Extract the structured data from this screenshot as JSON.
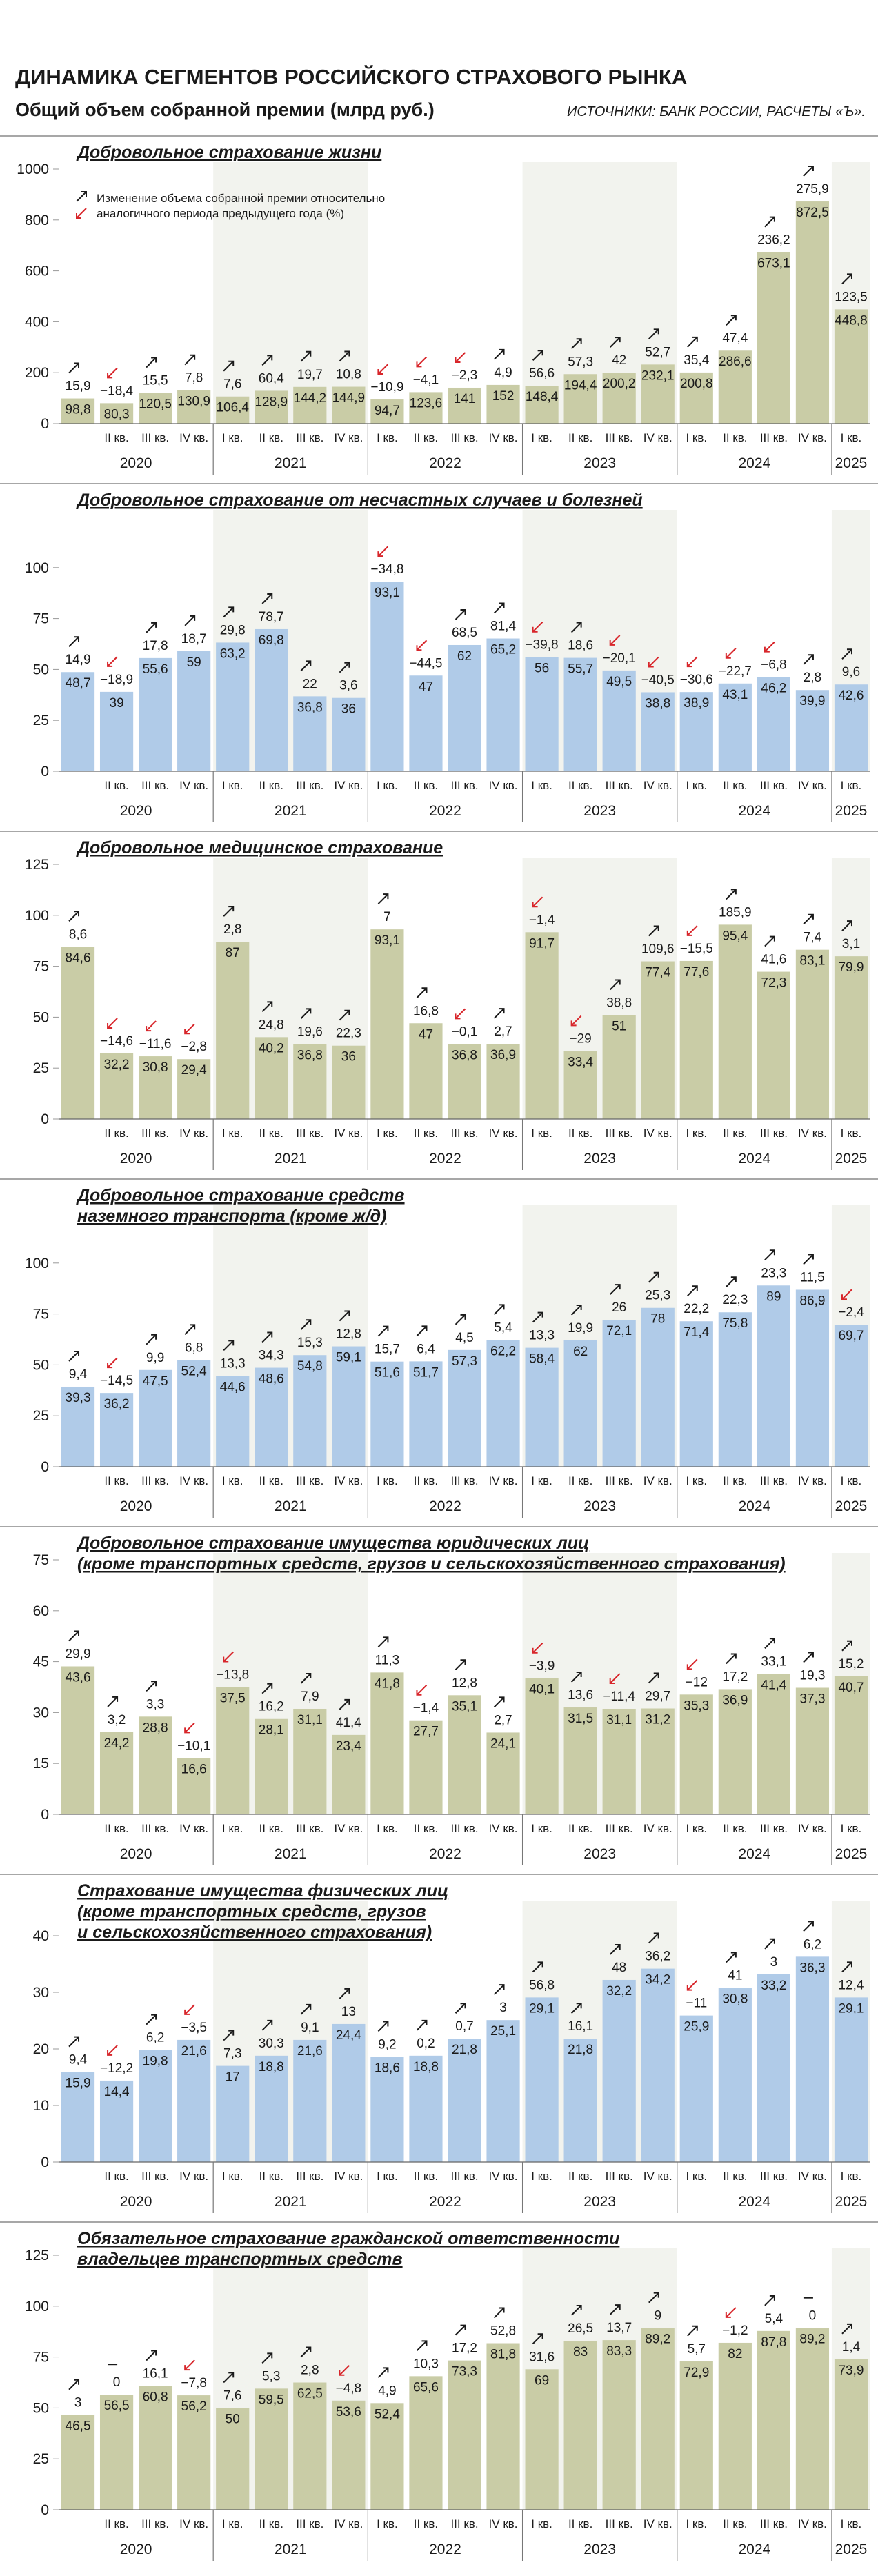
{
  "header": {
    "title": "ДИНАМИКА СЕГМЕНТОВ РОССИЙСКОГО СТРАХОВОГО РЫНКА",
    "subtitle": "Общий объем собранной премии (млрд руб.)",
    "source": "ИСТОЧНИКИ: БАНК РОССИИ, РАСЧЕТЫ «Ъ»."
  },
  "chart_data": [
    {
      "type": "bar",
      "title": [
        "Добровольное страхование жизни"
      ],
      "note": [
        "Изменение объема собранной премии относительно",
        "аналогичного периода предыдущего года (%)"
      ],
      "color": "#c9cca6",
      "categories": [
        null,
        "II кв.",
        "III кв.",
        "IV кв.",
        "I кв.",
        "II кв.",
        "III кв.",
        "IV кв.",
        "I кв.",
        "II кв.",
        "III кв.",
        "IV кв.",
        "I кв.",
        "II кв.",
        "III кв.",
        "IV кв.",
        "I кв.",
        "II кв.",
        "III кв.",
        "IV кв.",
        "I кв."
      ],
      "years": [
        "2020",
        "2021",
        "2022",
        "2023",
        "2024",
        "2025"
      ],
      "values": [
        98.8,
        80.3,
        120.5,
        130.9,
        106.4,
        128.9,
        144.2,
        144.9,
        94.7,
        123.6,
        141,
        152,
        148.4,
        194.4,
        200.2,
        232.1,
        200.8,
        286.6,
        673.1,
        872.5,
        448.8
      ],
      "value_labels": [
        "98,8",
        "80,3",
        "120,5",
        "130,9",
        "106,4",
        "128,9",
        "144,2",
        "144,9",
        "94,7",
        "123,6",
        "141",
        "152",
        "148,4",
        "194,4",
        "200,2",
        "232,1",
        "200,8",
        "286,6",
        "673,1",
        "872,5",
        "448,8"
      ],
      "changes": [
        15.9,
        -18.4,
        15.5,
        7.8,
        7.6,
        60.4,
        19.7,
        10.8,
        -10.9,
        -4.1,
        -2.3,
        4.9,
        56.6,
        57.3,
        42,
        52.7,
        35.4,
        47.4,
        236.2,
        275.9,
        123.5
      ],
      "change_labels": [
        "15,9",
        "−18,4",
        "15,5",
        "7,8",
        "7,6",
        "60,4",
        "19,7",
        "10,8",
        "−10,9",
        "−4,1",
        "−2,3",
        "4,9",
        "56,6",
        "57,3",
        "42",
        "52,7",
        "35,4",
        "47,4",
        "236,2",
        "275,9",
        "123,5"
      ],
      "ylim": [
        0,
        1000
      ],
      "yticks": [
        0,
        200,
        400,
        600,
        800,
        1000
      ]
    },
    {
      "type": "bar",
      "title": [
        "Добровольное страхование от несчастных случаев и болезней"
      ],
      "color": "#b0cbe8",
      "categories": [
        null,
        "II кв.",
        "III кв.",
        "IV кв.",
        "I кв.",
        "II кв.",
        "III кв.",
        "IV кв.",
        "I кв.",
        "II кв.",
        "III кв.",
        "IV кв.",
        "I кв.",
        "II кв.",
        "III кв.",
        "IV кв.",
        "I кв.",
        "II кв.",
        "III кв.",
        "IV кв.",
        "I кв."
      ],
      "years": [
        "2020",
        "2021",
        "2022",
        "2023",
        "2024",
        "2025"
      ],
      "values": [
        48.7,
        39,
        55.6,
        59,
        63.2,
        69.8,
        36.8,
        36,
        93.1,
        47,
        62,
        65.2,
        56,
        55.7,
        49.5,
        38.8,
        38.9,
        43.1,
        46.2,
        39.9,
        42.6
      ],
      "value_labels": [
        "48,7",
        "39",
        "55,6",
        "59",
        "63,2",
        "69,8",
        "36,8",
        "36",
        "93,1",
        "47",
        "62",
        "65,2",
        "56",
        "55,7",
        "49,5",
        "38,8",
        "38,9",
        "43,1",
        "46,2",
        "39,9",
        "42,6"
      ],
      "changes": [
        14.9,
        -18.9,
        17.8,
        18.7,
        29.8,
        78.7,
        22,
        3.6,
        -34.8,
        -44.5,
        68.5,
        81.4,
        -39.8,
        18.6,
        -20.1,
        -40.5,
        -30.6,
        -22.7,
        -6.8,
        2.8,
        9.6
      ],
      "change_labels": [
        "14,9",
        "−18,9",
        "17,8",
        "18,7",
        "29,8",
        "78,7",
        "22",
        "3,6",
        "−34,8",
        "−44,5",
        "68,5",
        "81,4",
        "−39,8",
        "18,6",
        "−20,1",
        "−40,5",
        "−30,6",
        "−22,7",
        "−6,8",
        "2,8",
        "9,6"
      ],
      "ylim": [
        0,
        125
      ],
      "yticks": [
        0,
        25,
        50,
        75,
        100
      ]
    },
    {
      "type": "bar",
      "title": [
        "Добровольное медицинское страхование"
      ],
      "color": "#c9cca6",
      "categories": [
        null,
        "II кв.",
        "III кв.",
        "IV кв.",
        "I кв.",
        "II кв.",
        "III кв.",
        "IV кв.",
        "I кв.",
        "II кв.",
        "III кв.",
        "IV кв.",
        "I кв.",
        "II кв.",
        "III кв.",
        "IV кв.",
        "I кв.",
        "II кв.",
        "III кв.",
        "IV кв.",
        "I кв."
      ],
      "years": [
        "2020",
        "2021",
        "2022",
        "2023",
        "2024",
        "2025"
      ],
      "values": [
        84.6,
        32.2,
        30.8,
        29.4,
        87,
        40.2,
        36.8,
        36,
        93.1,
        47,
        36.8,
        36.9,
        91.7,
        33.4,
        51,
        77.4,
        77.6,
        95.4,
        72.3,
        83.1,
        79.9
      ],
      "value_labels": [
        "84,6",
        "32,2",
        "30,8",
        "29,4",
        "87",
        "40,2",
        "36,8",
        "36",
        "93,1",
        "47",
        "36,8",
        "36,9",
        "91,7",
        "33,4",
        "51",
        "77,4",
        "77,6",
        "95,4",
        "72,3",
        "83,1",
        "79,9"
      ],
      "changes": [
        8.6,
        -14.6,
        -11.6,
        -2.8,
        2.8,
        24.8,
        19.6,
        22.3,
        7,
        16.8,
        -0.1,
        2.7,
        -1.4,
        -29,
        38.8,
        109.6,
        -15.5,
        185.9,
        41.6,
        7.4,
        3.1
      ],
      "change_labels": [
        "8,6",
        "−14,6",
        "−11,6",
        "−2,8",
        "2,8",
        "24,8",
        "19,6",
        "22,3",
        "7",
        "16,8",
        "−0,1",
        "2,7",
        "−1,4",
        "−29",
        "38,8",
        "109,6",
        "−15,5",
        "185,9",
        "41,6",
        "7,4",
        "3,1"
      ],
      "ylim": [
        0,
        125
      ],
      "yticks": [
        0,
        25,
        50,
        75,
        100,
        125
      ]
    },
    {
      "type": "bar",
      "title": [
        "Добровольное страхование средств",
        "наземного транспорта (кроме ж/д)"
      ],
      "color": "#b0cbe8",
      "categories": [
        null,
        "II кв.",
        "III кв.",
        "IV кв.",
        "I кв.",
        "II кв.",
        "III кв.",
        "IV кв.",
        "I кв.",
        "II кв.",
        "III кв.",
        "IV кв.",
        "I кв.",
        "II кв.",
        "III кв.",
        "IV кв.",
        "I кв.",
        "II кв.",
        "III кв.",
        "IV кв.",
        "I кв."
      ],
      "years": [
        "2020",
        "2021",
        "2022",
        "2023",
        "2024",
        "2025"
      ],
      "values": [
        39.3,
        36.2,
        47.5,
        52.4,
        44.6,
        48.6,
        54.8,
        59.1,
        51.6,
        51.7,
        57.3,
        62.2,
        58.4,
        62,
        72.1,
        78,
        71.4,
        75.8,
        89,
        86.9,
        69.7
      ],
      "value_labels": [
        "39,3",
        "36,2",
        "47,5",
        "52,4",
        "44,6",
        "48,6",
        "54,8",
        "59,1",
        "51,6",
        "51,7",
        "57,3",
        "62,2",
        "58,4",
        "62",
        "72,1",
        "78",
        "71,4",
        "75,8",
        "89",
        "86,9",
        "69,7"
      ],
      "changes": [
        9.4,
        -14.5,
        9.9,
        6.8,
        13.3,
        34.3,
        15.3,
        12.8,
        15.7,
        6.4,
        4.5,
        5.4,
        13.3,
        19.9,
        26,
        25.3,
        22.2,
        22.3,
        23.3,
        11.5,
        -2.4
      ],
      "change_labels": [
        "9,4",
        "−14,5",
        "9,9",
        "6,8",
        "13,3",
        "34,3",
        "15,3",
        "12,8",
        "15,7",
        "6,4",
        "4,5",
        "5,4",
        "13,3",
        "19,9",
        "26",
        "25,3",
        "22,2",
        "22,3",
        "23,3",
        "11,5",
        "−2,4"
      ],
      "ylim": [
        0,
        125
      ],
      "yticks": [
        0,
        25,
        50,
        75,
        100
      ]
    },
    {
      "type": "bar",
      "title": [
        "Добровольное страхование имущества юридических лиц",
        "(кроме транспортных средств, грузов и сельскохозяйственного страхования)"
      ],
      "color": "#c9cca6",
      "categories": [
        null,
        "II кв.",
        "III кв.",
        "IV кв.",
        "I кв.",
        "II кв.",
        "III кв.",
        "IV кв.",
        "I кв.",
        "II кв.",
        "III кв.",
        "IV кв.",
        "I кв.",
        "II кв.",
        "III кв.",
        "IV кв.",
        "I кв.",
        "II кв.",
        "III кв.",
        "IV кв.",
        "I кв."
      ],
      "years": [
        "2020",
        "2021",
        "2022",
        "2023",
        "2024",
        "2025"
      ],
      "values": [
        43.6,
        24.2,
        28.8,
        16.6,
        37.5,
        28.1,
        31.1,
        23.4,
        41.8,
        27.7,
        35.1,
        24.1,
        40.1,
        31.5,
        31.1,
        31.2,
        35.3,
        36.9,
        41.4,
        37.3,
        40.7
      ],
      "value_labels": [
        "43,6",
        "24,2",
        "28,8",
        "16,6",
        "37,5",
        "28,1",
        "31,1",
        "23,4",
        "41,8",
        "27,7",
        "35,1",
        "24,1",
        "40,1",
        "31,5",
        "31,1",
        "31,2",
        "35,3",
        "36,9",
        "41,4",
        "37,3",
        "40,7"
      ],
      "changes": [
        29.9,
        3.2,
        3.3,
        -10.1,
        -13.8,
        16.2,
        7.9,
        41.4,
        11.3,
        -1.4,
        12.8,
        2.7,
        -3.9,
        13.6,
        -11.4,
        29.7,
        -12,
        17.2,
        33.1,
        19.3,
        15.2
      ],
      "change_labels": [
        "29,9",
        "3,2",
        "3,3",
        "−10,1",
        "−13,8",
        "16,2",
        "7,9",
        "41,4",
        "11,3",
        "−1,4",
        "12,8",
        "2,7",
        "−3,9",
        "13,6",
        "−11,4",
        "29,7",
        "−12",
        "17,2",
        "33,1",
        "19,3",
        "15,2"
      ],
      "ylim": [
        0,
        75
      ],
      "yticks": [
        0,
        15,
        30,
        45,
        60,
        75
      ]
    },
    {
      "type": "bar",
      "title": [
        "Страхование имущества физических лиц",
        "(кроме транспортных средств, грузов",
        "и сельскохозяйственного страхования)"
      ],
      "color": "#b0cbe8",
      "categories": [
        null,
        "II кв.",
        "III кв.",
        "IV кв.",
        "I кв.",
        "II кв.",
        "III кв.",
        "IV кв.",
        "I кв.",
        "II кв.",
        "III кв.",
        "IV кв.",
        "I кв.",
        "II кв.",
        "III кв.",
        "IV кв.",
        "I кв.",
        "II кв.",
        "III кв.",
        "IV кв.",
        "I кв."
      ],
      "years": [
        "2020",
        "2021",
        "2022",
        "2023",
        "2024",
        "2025"
      ],
      "values": [
        15.9,
        14.4,
        19.8,
        21.6,
        17,
        18.8,
        21.6,
        24.4,
        18.6,
        18.8,
        21.8,
        25.1,
        29.1,
        21.8,
        32.2,
        34.2,
        25.9,
        30.8,
        33.2,
        36.3,
        29.1
      ],
      "value_labels": [
        "15,9",
        "14,4",
        "19,8",
        "21,6",
        "17",
        "18,8",
        "21,6",
        "24,4",
        "18,6",
        "18,8",
        "21,8",
        "25,1",
        "29,1",
        "21,8",
        "32,2",
        "34,2",
        "25,9",
        "30,8",
        "33,2",
        "36,3",
        "29,1"
      ],
      "changes": [
        9.4,
        -12.2,
        6.2,
        -3.5,
        7.3,
        30.3,
        9.1,
        13,
        9.2,
        0.2,
        0.7,
        3,
        56.8,
        16.1,
        48,
        36.2,
        -11,
        41,
        3,
        6.2,
        12.4
      ],
      "change_labels": [
        "9,4",
        "−12,2",
        "6,2",
        "−3,5",
        "7,3",
        "30,3",
        "9,1",
        "13",
        "9,2",
        "0,2",
        "0,7",
        "3",
        "56,8",
        "16,1",
        "48",
        "36,2",
        "−11",
        "41",
        "3",
        "6,2",
        "12,4"
      ],
      "ylim": [
        0,
        45
      ],
      "yticks": [
        0,
        10,
        20,
        30,
        40
      ]
    },
    {
      "type": "bar",
      "title": [
        "Обязательное страхование гражданской ответственности",
        "владельцев транспортных средств"
      ],
      "color": "#c9cca6",
      "categories": [
        null,
        "II кв.",
        "III кв.",
        "IV кв.",
        "I кв.",
        "II кв.",
        "III кв.",
        "IV кв.",
        "I кв.",
        "II кв.",
        "III кв.",
        "IV кв.",
        "I кв.",
        "II кв.",
        "III кв.",
        "IV кв.",
        "I кв.",
        "II кв.",
        "III кв.",
        "IV кв.",
        "I кв."
      ],
      "years": [
        "2020",
        "2021",
        "2022",
        "2023",
        "2024",
        "2025"
      ],
      "values": [
        46.5,
        56.5,
        60.8,
        56.2,
        50,
        59.5,
        62.5,
        53.6,
        52.4,
        65.6,
        73.3,
        81.8,
        69,
        83,
        83.3,
        89.2,
        72.9,
        82,
        87.8,
        89.2,
        73.9
      ],
      "value_labels": [
        "46,5",
        "56,5",
        "60,8",
        "56,2",
        "50",
        "59,5",
        "62,5",
        "53,6",
        "52,4",
        "65,6",
        "73,3",
        "81,8",
        "69",
        "83",
        "83,3",
        "89,2",
        "72,9",
        "82",
        "87,8",
        "89,2",
        "73,9"
      ],
      "changes": [
        3,
        0,
        16.1,
        -7.8,
        7.6,
        5.3,
        2.8,
        -4.8,
        4.9,
        10.3,
        17.2,
        52.8,
        31.6,
        26.5,
        13.7,
        9,
        5.7,
        -1.2,
        5.4,
        0,
        1.4
      ],
      "change_labels": [
        "3",
        "0",
        "16,1",
        "−7,8",
        "7,6",
        "5,3",
        "2,8",
        "−4,8",
        "4,9",
        "10,3",
        "17,2",
        "52,8",
        "31,6",
        "26,5",
        "13,7",
        "9",
        "5,7",
        "−1,2",
        "5,4",
        "0",
        "1,4"
      ],
      "ylim": [
        0,
        125
      ],
      "yticks": [
        0,
        25,
        50,
        75,
        100,
        125
      ]
    }
  ]
}
